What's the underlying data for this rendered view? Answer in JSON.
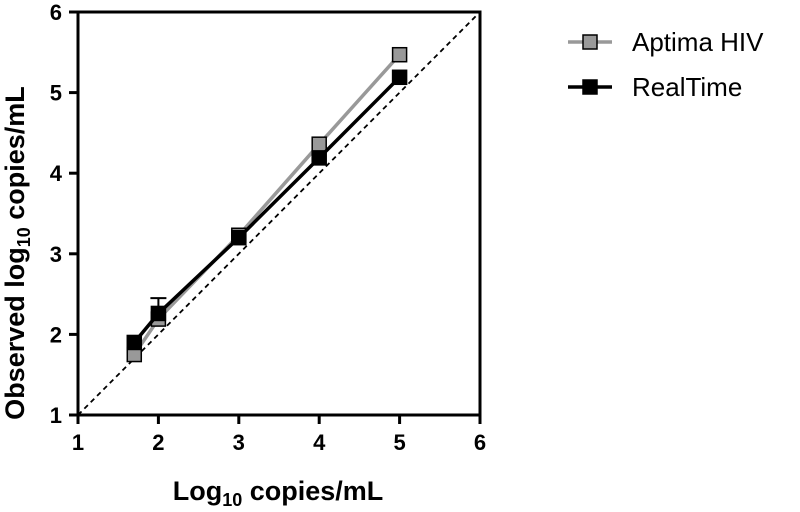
{
  "chart_data": {
    "type": "line",
    "title": "",
    "xlabel": {
      "base": "Log",
      "sub": "10",
      "rest": " copies/mL"
    },
    "ylabel": {
      "base": "Observed log",
      "sub": "10",
      "rest": " copies/mL"
    },
    "xlim": [
      1,
      6
    ],
    "ylim": [
      1,
      6
    ],
    "xticks": [
      "1",
      "2",
      "3",
      "4",
      "5",
      "6"
    ],
    "yticks": [
      "1",
      "2",
      "3",
      "4",
      "5",
      "6"
    ],
    "grid": false,
    "legend_position": "top-right outside",
    "reference_line": {
      "style": "dashed",
      "from": [
        1,
        1
      ],
      "to": [
        6,
        6
      ],
      "color": "#000000"
    },
    "series": [
      {
        "name": "Aptima HIV",
        "color": "#999999",
        "marker": "square",
        "x": [
          1.7,
          2.0,
          3.0,
          4.0,
          5.0
        ],
        "y": [
          1.75,
          2.19,
          3.23,
          4.36,
          5.47
        ]
      },
      {
        "name": "RealTime",
        "color": "#000000",
        "marker": "square",
        "x": [
          1.7,
          2.0,
          3.0,
          4.0,
          5.0
        ],
        "y": [
          1.9,
          2.26,
          3.2,
          4.19,
          5.19
        ],
        "error_upper": [
          null,
          0.19,
          null,
          null,
          null
        ]
      }
    ]
  }
}
